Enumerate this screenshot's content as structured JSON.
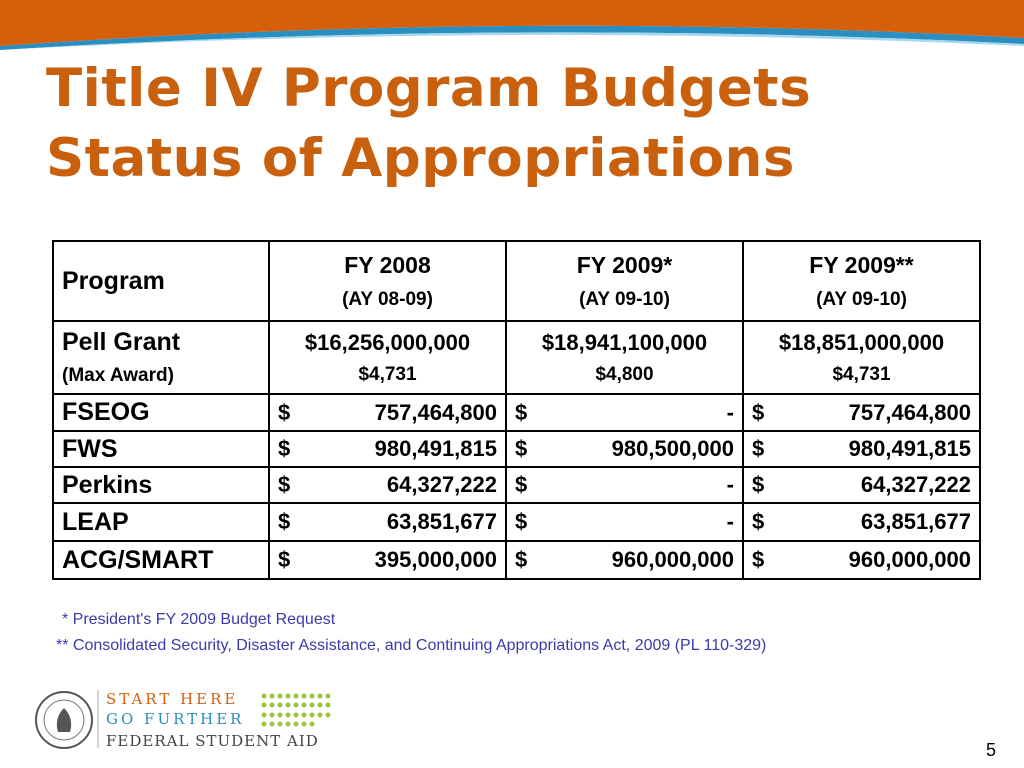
{
  "title": {
    "line1": "Title IV Program Budgets",
    "line2": "Status of Appropriations"
  },
  "table": {
    "header": {
      "program": "Program",
      "columns": [
        {
          "label": "FY 2008",
          "sub": "(AY 08-09)"
        },
        {
          "label": "FY 2009*",
          "sub": "(AY 09-10)"
        },
        {
          "label": "FY 2009**",
          "sub": "(AY 09-10)"
        }
      ]
    },
    "pell": {
      "program": "Pell Grant",
      "sub": "(Max Award)",
      "values": [
        "$16,256,000,000",
        "$18,941,100,000",
        "$18,851,000,000"
      ],
      "subvalues": [
        "$4,731",
        "$4,800",
        "$4,731"
      ]
    },
    "rows": [
      {
        "program": "FSEOG",
        "values": [
          [
            "$",
            "757,464,800"
          ],
          [
            "$",
            "-"
          ],
          [
            "$",
            "757,464,800"
          ]
        ]
      },
      {
        "program": "FWS",
        "values": [
          [
            "$",
            "980,491,815"
          ],
          [
            "$",
            "980,500,000"
          ],
          [
            "$",
            "980,491,815"
          ]
        ]
      },
      {
        "program": "Perkins",
        "values": [
          [
            "$",
            "64,327,222"
          ],
          [
            "$",
            "-"
          ],
          [
            "$",
            "64,327,222"
          ]
        ]
      },
      {
        "program": "LEAP",
        "values": [
          [
            "$",
            "63,851,677"
          ],
          [
            "$",
            "-"
          ],
          [
            "$",
            "63,851,677"
          ]
        ]
      },
      {
        "program": "ACG/SMART",
        "values": [
          [
            "$",
            "395,000,000"
          ],
          [
            "$",
            "960,000,000"
          ],
          [
            "$",
            "960,000,000"
          ]
        ]
      }
    ]
  },
  "footnotes": [
    "*  President's FY 2009 Budget Request",
    "** Consolidated Security, Disaster Assistance, and Continuing Appropriations Act, 2009 (PL 110-329)"
  ],
  "logo": {
    "line1": "START HERE",
    "line2": "GO FURTHER",
    "line3": "FEDERAL STUDENT AID"
  },
  "page_number": "5"
}
